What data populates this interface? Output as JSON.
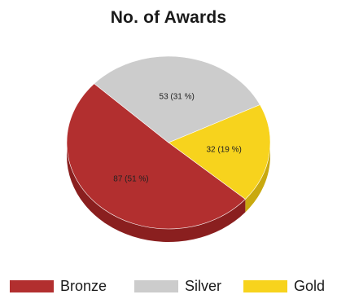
{
  "chart_data": {
    "type": "pie",
    "title": "No. of Awards",
    "slices": [
      {
        "name": "Gold",
        "value": 32,
        "percent": 19,
        "label": "32 (19 %)",
        "color": "#f7d31d",
        "shade": "#c9a90f"
      },
      {
        "name": "Bronze",
        "value": 87,
        "percent": 51,
        "label": "87 (51 %)",
        "color": "#b22f2f",
        "shade": "#8a1f1f"
      },
      {
        "name": "Silver",
        "value": 53,
        "percent": 31,
        "label": "53 (31 %)",
        "color": "#cccccc",
        "shade": "#a8a8a8"
      }
    ],
    "legend": {
      "position": "bottom",
      "items": [
        {
          "name": "Bronze",
          "color": "#b22f2f"
        },
        {
          "name": "Silver",
          "color": "#cccccc"
        },
        {
          "name": "Gold",
          "color": "#f7d31d"
        }
      ]
    },
    "style": "3d-tilted"
  }
}
